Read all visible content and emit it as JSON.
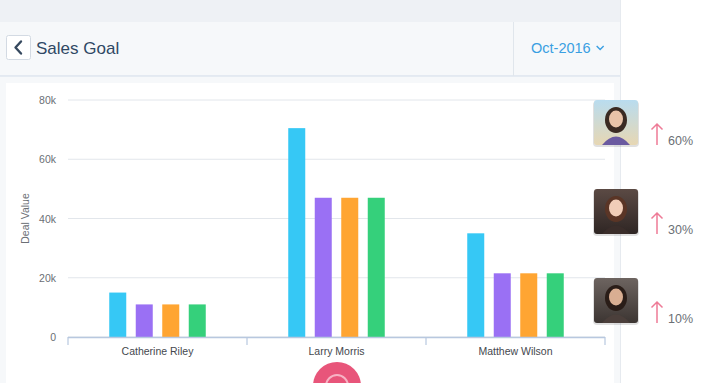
{
  "chart_data": {
    "type": "bar",
    "title": "Sales Goal",
    "y_label": "Deal Value",
    "categories": [
      "Catherine Riley",
      "Larry Morris",
      "Matthew Wilson"
    ],
    "series": [
      {
        "color": "#36c8f5",
        "values": [
          15000,
          70500,
          35000
        ]
      },
      {
        "color": "#9a70f4",
        "values": [
          11000,
          47000,
          21500
        ]
      },
      {
        "color": "#ffa532",
        "values": [
          11000,
          47000,
          21500
        ]
      },
      {
        "color": "#35d07b",
        "values": [
          11000,
          47000,
          21500
        ]
      }
    ],
    "ylim": [
      0,
      80000
    ],
    "yticks": [
      0,
      {
        "value": 20000,
        "label": "20k"
      },
      {
        "value": 40000,
        "label": "40k"
      },
      {
        "value": 60000,
        "label": "60k"
      },
      {
        "value": 80000,
        "label": "80k"
      }
    ],
    "grid": true
  },
  "period_selector": "Oct-2016",
  "trends": [
    {
      "direction": "up",
      "label": "60%"
    },
    {
      "direction": "up",
      "label": "30%"
    },
    {
      "direction": "up",
      "label": "10%"
    }
  ]
}
